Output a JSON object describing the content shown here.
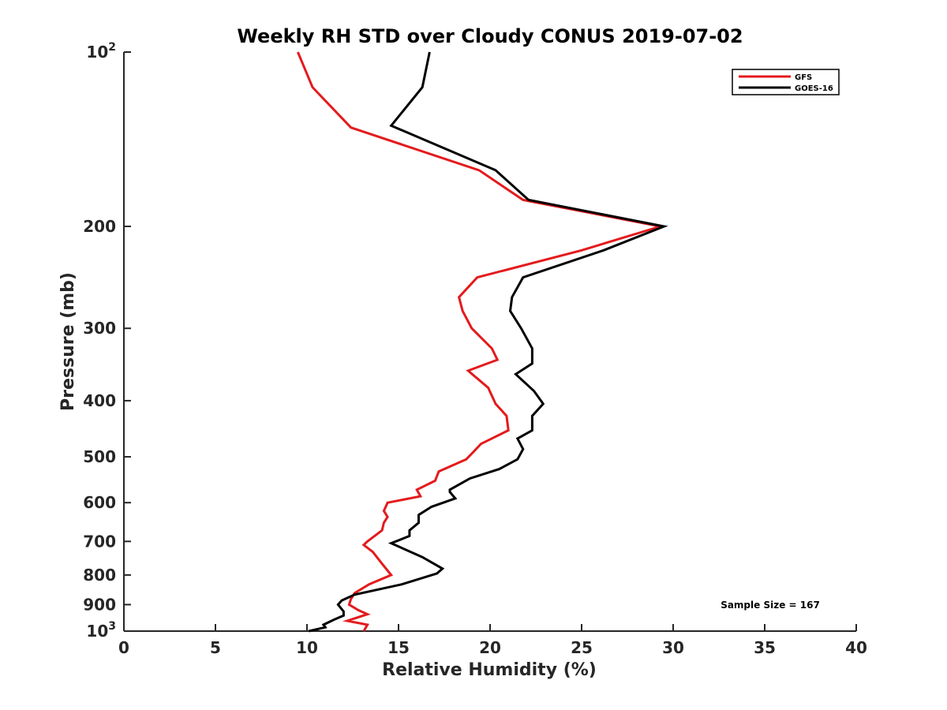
{
  "chart_data": {
    "type": "line",
    "title": "Weekly RH STD over Cloudy CONUS 2019-07-02",
    "xlabel": "Relative Humidity (%)",
    "ylabel": "Pressure (mb)",
    "xlim": [
      0,
      40
    ],
    "ylim": [
      100,
      1000
    ],
    "yscale": "log",
    "y_reversed": true,
    "grid": false,
    "x_ticks": [
      0,
      5,
      10,
      15,
      20,
      25,
      30,
      35,
      40
    ],
    "x_tick_labels": [
      "0",
      "5",
      "10",
      "15",
      "20",
      "25",
      "30",
      "35",
      "40"
    ],
    "y_ticks": [
      100,
      200,
      300,
      400,
      500,
      600,
      700,
      800,
      900,
      1000
    ],
    "y_tick_labels": [
      {
        "base": "10",
        "exp": "2"
      },
      {
        "base": "200",
        "exp": ""
      },
      {
        "base": "300",
        "exp": ""
      },
      {
        "base": "400",
        "exp": ""
      },
      {
        "base": "500",
        "exp": ""
      },
      {
        "base": "600",
        "exp": ""
      },
      {
        "base": "700",
        "exp": ""
      },
      {
        "base": "800",
        "exp": ""
      },
      {
        "base": "900",
        "exp": ""
      },
      {
        "base": "10",
        "exp": "3"
      }
    ],
    "legend_position": "top-right",
    "series": [
      {
        "name": "GFS",
        "color": "#e41a1c",
        "points": [
          {
            "x": 9.5,
            "y": 100
          },
          {
            "x": 10.3,
            "y": 115
          },
          {
            "x": 12.4,
            "y": 135
          },
          {
            "x": 19.4,
            "y": 160
          },
          {
            "x": 21.8,
            "y": 180
          },
          {
            "x": 29.3,
            "y": 200
          },
          {
            "x": 25.0,
            "y": 220
          },
          {
            "x": 19.3,
            "y": 245
          },
          {
            "x": 18.3,
            "y": 265
          },
          {
            "x": 18.5,
            "y": 280
          },
          {
            "x": 19.0,
            "y": 300
          },
          {
            "x": 20.1,
            "y": 325
          },
          {
            "x": 20.4,
            "y": 340
          },
          {
            "x": 18.8,
            "y": 355
          },
          {
            "x": 19.9,
            "y": 380
          },
          {
            "x": 20.3,
            "y": 405
          },
          {
            "x": 20.9,
            "y": 425
          },
          {
            "x": 21.0,
            "y": 450
          },
          {
            "x": 19.5,
            "y": 475
          },
          {
            "x": 19.1,
            "y": 490
          },
          {
            "x": 18.7,
            "y": 505
          },
          {
            "x": 17.2,
            "y": 530
          },
          {
            "x": 17.0,
            "y": 550
          },
          {
            "x": 16.0,
            "y": 570
          },
          {
            "x": 16.2,
            "y": 585
          },
          {
            "x": 14.4,
            "y": 600
          },
          {
            "x": 14.2,
            "y": 620
          },
          {
            "x": 14.4,
            "y": 635
          },
          {
            "x": 14.2,
            "y": 650
          },
          {
            "x": 14.1,
            "y": 670
          },
          {
            "x": 13.3,
            "y": 700
          },
          {
            "x": 13.1,
            "y": 710
          },
          {
            "x": 13.6,
            "y": 730
          },
          {
            "x": 14.1,
            "y": 765
          },
          {
            "x": 14.6,
            "y": 800
          },
          {
            "x": 13.4,
            "y": 830
          },
          {
            "x": 12.6,
            "y": 860
          },
          {
            "x": 12.4,
            "y": 880
          },
          {
            "x": 12.3,
            "y": 900
          },
          {
            "x": 12.8,
            "y": 920
          },
          {
            "x": 13.3,
            "y": 935
          },
          {
            "x": 12.2,
            "y": 960
          },
          {
            "x": 13.3,
            "y": 975
          },
          {
            "x": 13.1,
            "y": 1000
          }
        ]
      },
      {
        "name": "GOES-16",
        "color": "#000000",
        "points": [
          {
            "x": 16.7,
            "y": 100
          },
          {
            "x": 16.3,
            "y": 115
          },
          {
            "x": 14.6,
            "y": 134
          },
          {
            "x": 20.3,
            "y": 160
          },
          {
            "x": 22.1,
            "y": 180
          },
          {
            "x": 29.5,
            "y": 200
          },
          {
            "x": 26.2,
            "y": 220
          },
          {
            "x": 21.8,
            "y": 245
          },
          {
            "x": 21.2,
            "y": 265
          },
          {
            "x": 21.1,
            "y": 280
          },
          {
            "x": 21.7,
            "y": 300
          },
          {
            "x": 22.3,
            "y": 325
          },
          {
            "x": 22.3,
            "y": 345
          },
          {
            "x": 21.4,
            "y": 360
          },
          {
            "x": 22.4,
            "y": 385
          },
          {
            "x": 22.9,
            "y": 405
          },
          {
            "x": 22.3,
            "y": 425
          },
          {
            "x": 22.3,
            "y": 450
          },
          {
            "x": 21.5,
            "y": 465
          },
          {
            "x": 21.8,
            "y": 485
          },
          {
            "x": 21.5,
            "y": 505
          },
          {
            "x": 20.5,
            "y": 525
          },
          {
            "x": 18.9,
            "y": 545
          },
          {
            "x": 17.8,
            "y": 570
          },
          {
            "x": 17.8,
            "y": 575
          },
          {
            "x": 18.1,
            "y": 590
          },
          {
            "x": 16.8,
            "y": 610
          },
          {
            "x": 16.1,
            "y": 630
          },
          {
            "x": 16.1,
            "y": 650
          },
          {
            "x": 15.6,
            "y": 670
          },
          {
            "x": 15.6,
            "y": 685
          },
          {
            "x": 14.6,
            "y": 705
          },
          {
            "x": 16.3,
            "y": 745
          },
          {
            "x": 17.4,
            "y": 780
          },
          {
            "x": 17.1,
            "y": 795
          },
          {
            "x": 15.2,
            "y": 830
          },
          {
            "x": 12.6,
            "y": 865
          },
          {
            "x": 11.9,
            "y": 885
          },
          {
            "x": 11.7,
            "y": 900
          },
          {
            "x": 12.0,
            "y": 925
          },
          {
            "x": 12.0,
            "y": 940
          },
          {
            "x": 11.5,
            "y": 955
          },
          {
            "x": 10.9,
            "y": 975
          },
          {
            "x": 11.0,
            "y": 985
          },
          {
            "x": 10.1,
            "y": 1000
          }
        ]
      }
    ],
    "annotations": [
      "Sample Size = 167"
    ]
  }
}
